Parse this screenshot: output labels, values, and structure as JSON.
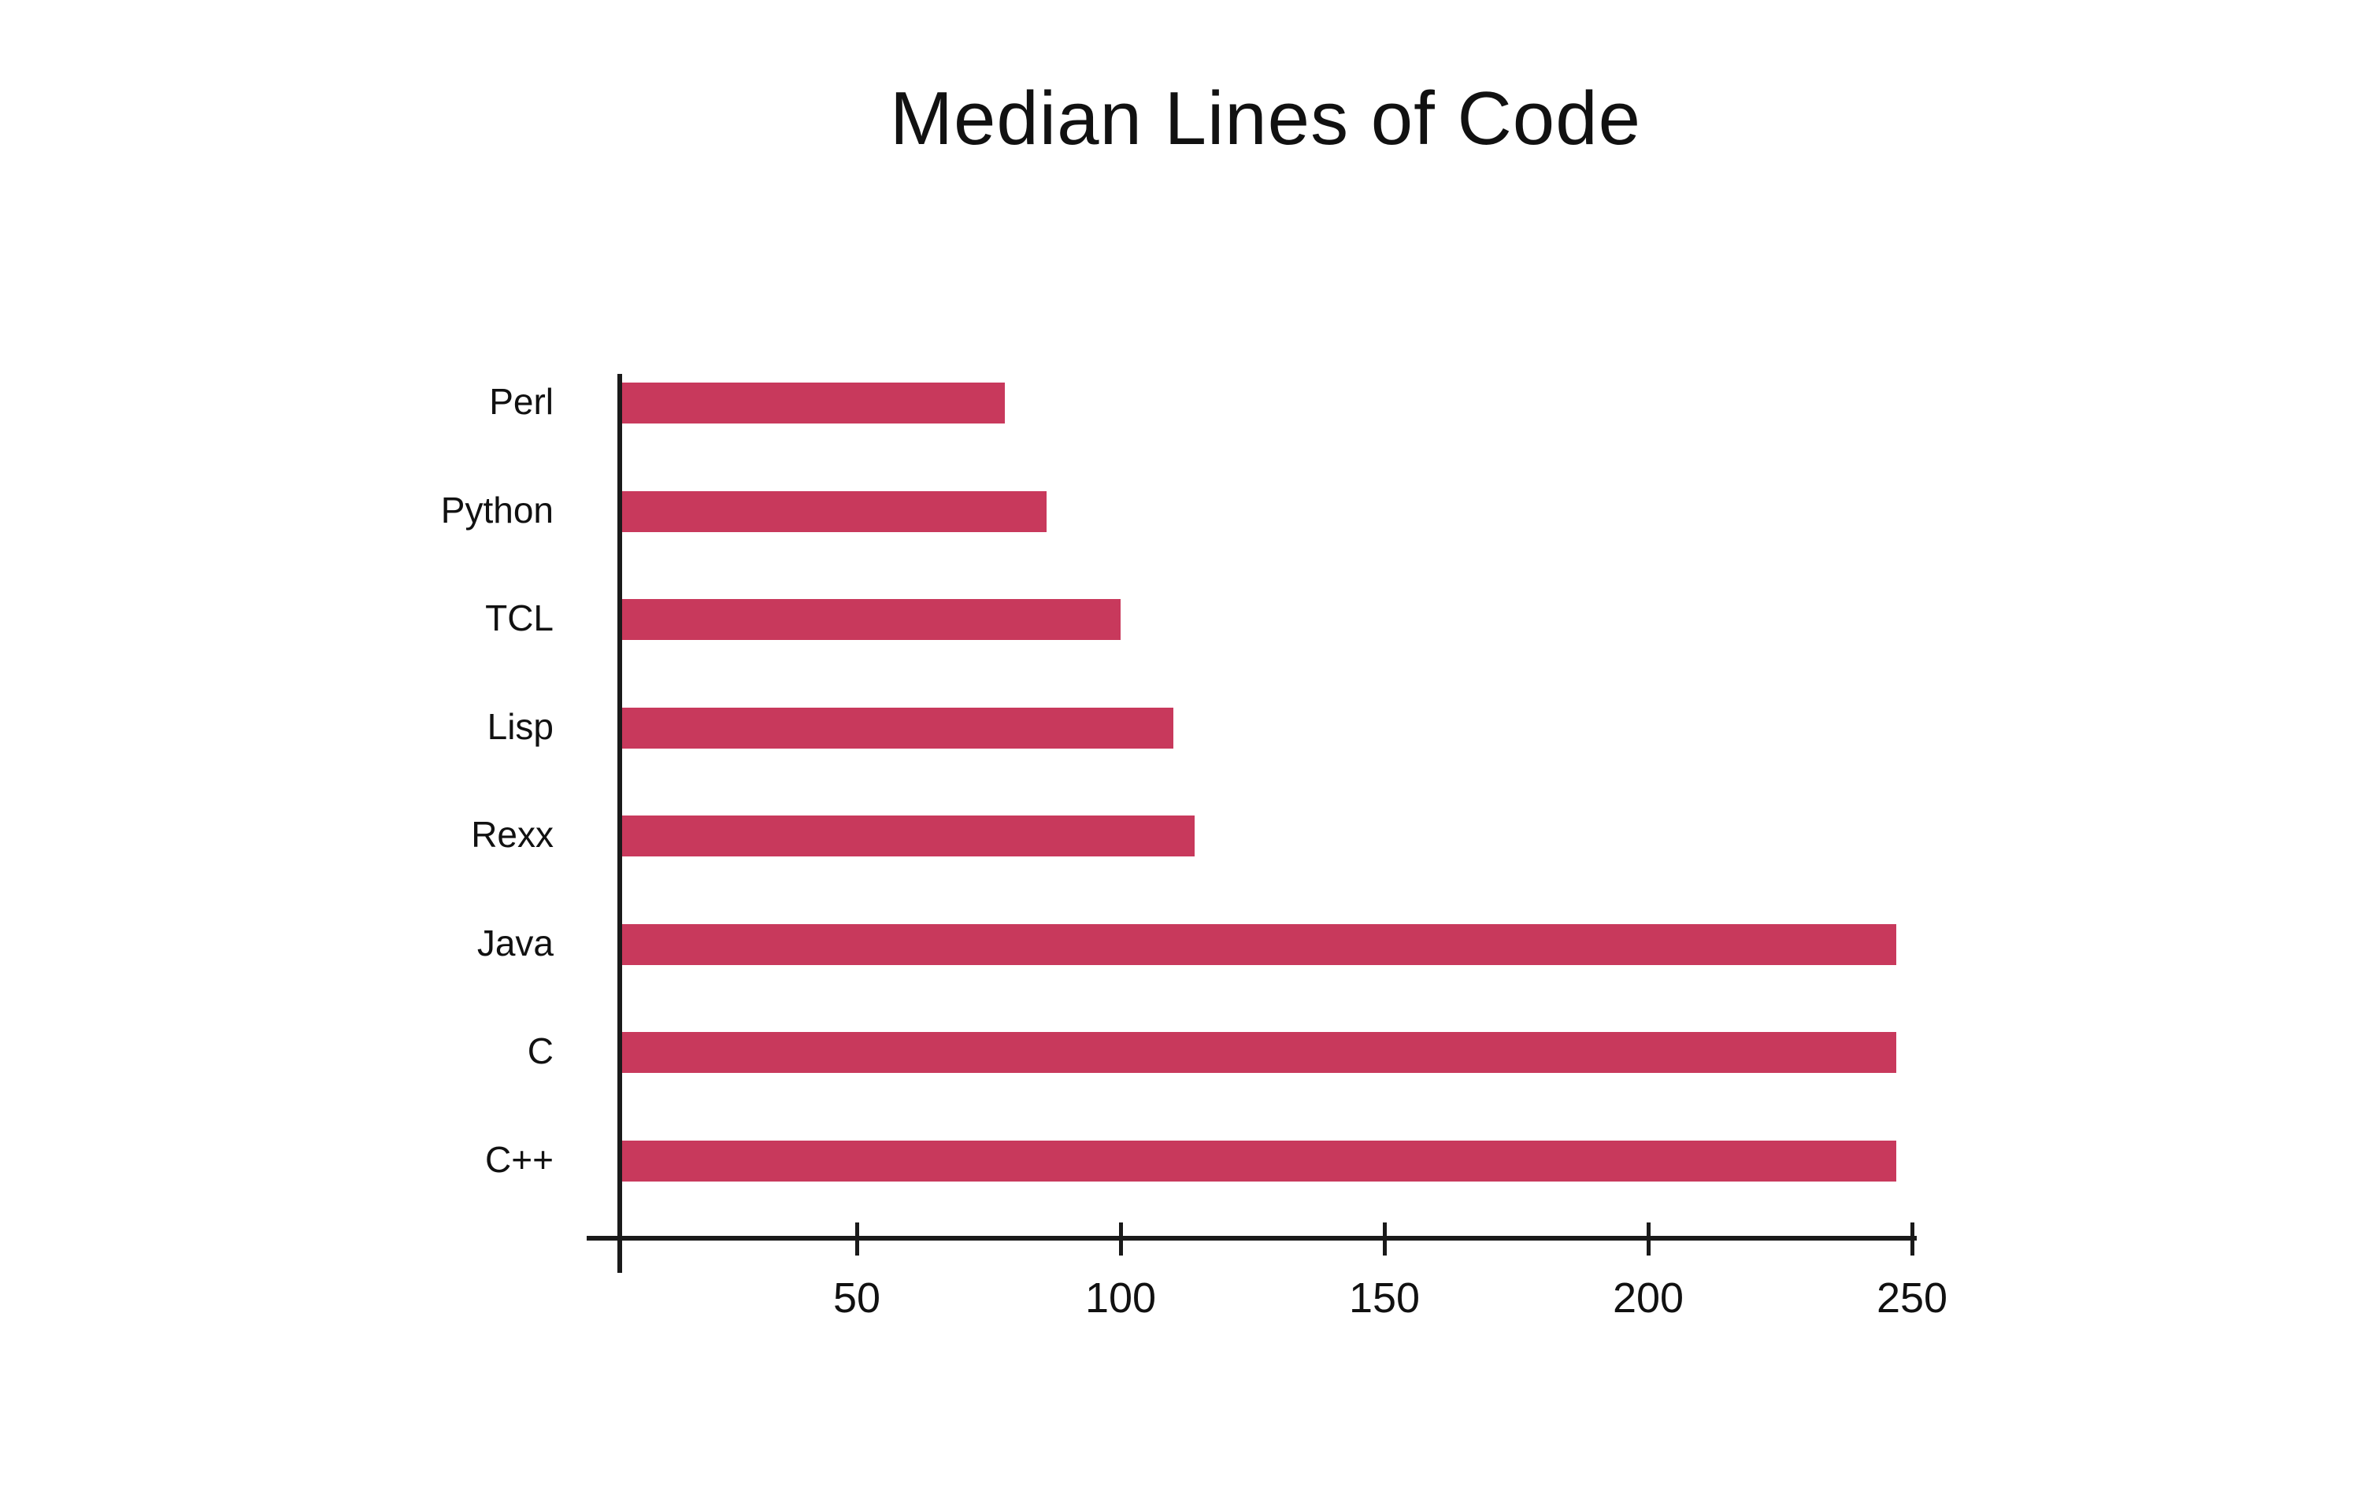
{
  "title": "Median Lines of Code",
  "colors": {
    "bar": "#c8395c",
    "text": "#111111",
    "axis": "#1a1a1a",
    "background": "#ffffff"
  },
  "chart_data": {
    "type": "bar",
    "orientation": "horizontal",
    "title": "Median Lines of Code",
    "categories": [
      "Perl",
      "Python",
      "TCL",
      "Lisp",
      "Rexx",
      "Java",
      "C",
      "C++"
    ],
    "values": [
      78,
      86,
      100,
      110,
      114,
      247,
      247,
      247
    ],
    "xlabel": "",
    "ylabel": "",
    "xlim": [
      0,
      250
    ],
    "xticks": [
      50,
      100,
      150,
      200,
      250
    ],
    "grid": false,
    "legend_position": "none",
    "bar_color": "#c8395c"
  }
}
